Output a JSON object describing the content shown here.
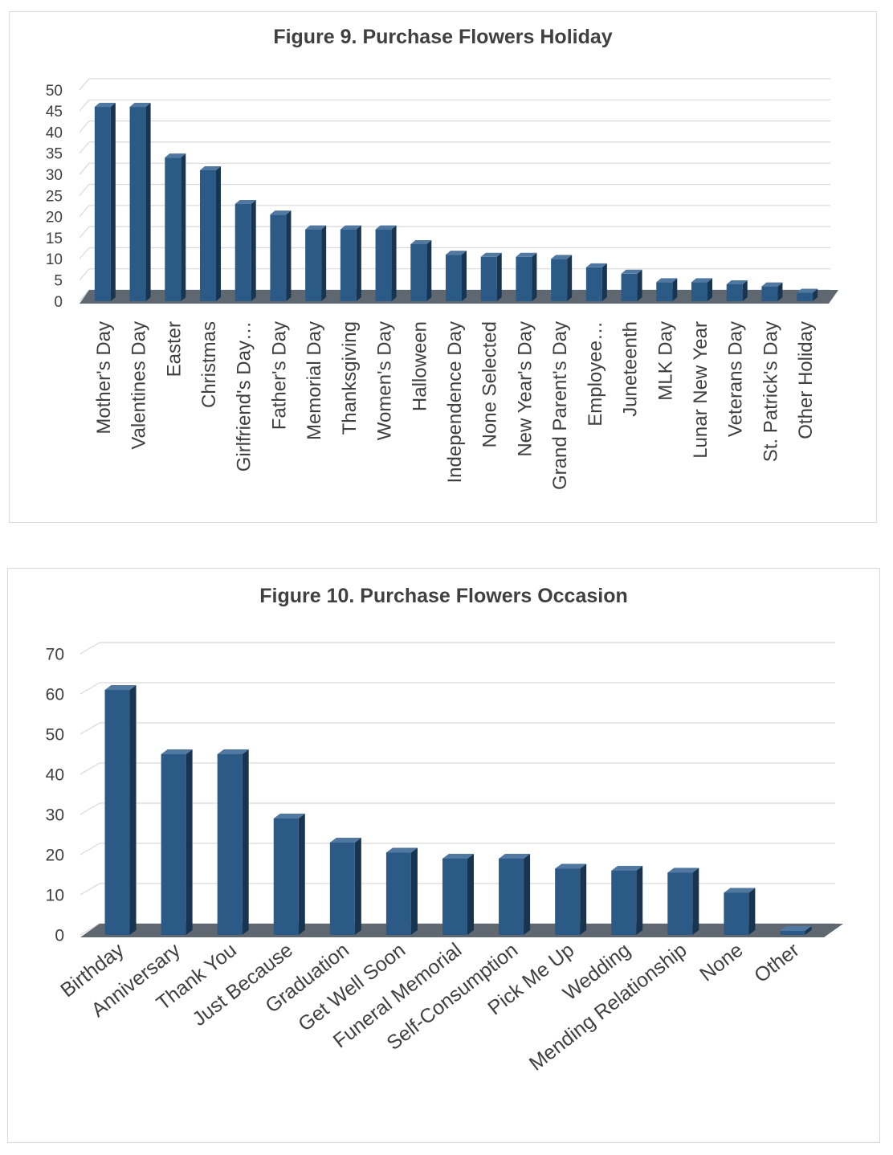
{
  "colors": {
    "bar_front": "#2a5a85",
    "bar_top": "#5078a0",
    "bar_side": "#173550",
    "floor": "#5f6770",
    "grid": "#d9d9d9",
    "text": "#404040"
  },
  "chart_data": [
    {
      "type": "bar",
      "title": "Figure 9. Purchase Flowers Holiday",
      "xlabel": "",
      "ylabel": "",
      "ylim": [
        0,
        50
      ],
      "yticks": [
        "0",
        "5",
        "10",
        "15",
        "20",
        "25",
        "30",
        "35",
        "40",
        "45",
        "50"
      ],
      "categories": [
        "Mother's Day",
        "Valentines Day",
        "Easter",
        "Christmas",
        "Girlfriend's Day…",
        "Father's Day",
        "Memorial Day",
        "Thanksgiving",
        "Women's Day",
        "Halloween",
        "Independence Day",
        "None Selected",
        "New Year's Day",
        "Grand Parent's Day",
        "Employee…",
        "Juneteenth",
        "MLK Day",
        "Lunar New Year",
        "Veterans Day",
        "St. Patrick's Day",
        "Other Holiday"
      ],
      "values": [
        46,
        46,
        34,
        31,
        23,
        20.5,
        17,
        17,
        17,
        13.5,
        11,
        10.5,
        10.5,
        10,
        8,
        6.5,
        4.5,
        4.5,
        4,
        3.5,
        2
      ],
      "grid": true,
      "legend": "none"
    },
    {
      "type": "bar",
      "title": "Figure 10. Purchase Flowers Occasion",
      "xlabel": "",
      "ylabel": "",
      "ylim": [
        0,
        70
      ],
      "yticks": [
        "0",
        "10",
        "20",
        "30",
        "40",
        "50",
        "60",
        "70"
      ],
      "categories": [
        "Birthday",
        "Anniversary",
        "Thank You",
        "Just Because",
        "Graduation",
        "Get Well Soon",
        "Funeral Memorial",
        "Self-Consumption",
        "Pick Me Up",
        "Wedding",
        "Mending Relationship",
        "None",
        "Other"
      ],
      "values": [
        61,
        45,
        45,
        29,
        23,
        20.5,
        19,
        19,
        16.5,
        16,
        15.5,
        10.5,
        1
      ],
      "grid": true,
      "legend": "none"
    }
  ]
}
